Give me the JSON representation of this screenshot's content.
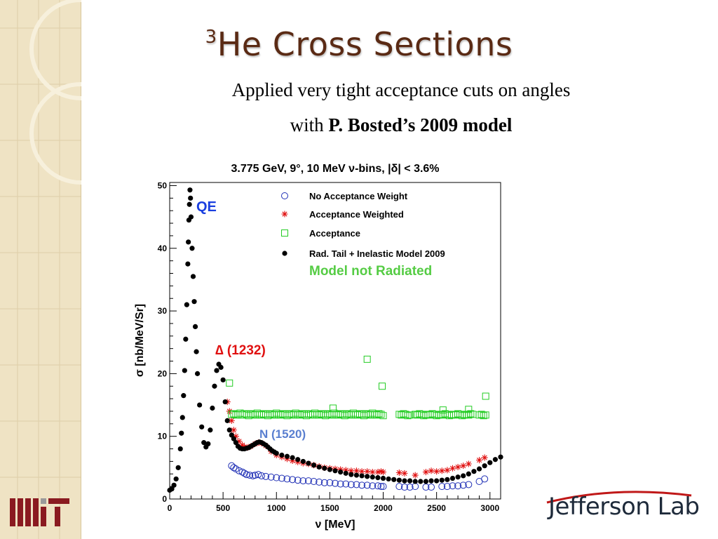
{
  "slide": {
    "title_sup": "3",
    "title": "He Cross Sections",
    "subtitle_line1": "Applied very tight acceptance cuts on angles",
    "subtitle_line2_plain": "with ",
    "subtitle_line2_bold": "P. Bosted’s 2009 model"
  },
  "logos": {
    "left": "MIT",
    "right": "Jefferson Lab"
  },
  "theme": {
    "title_color": "#5a2a14",
    "sidebar_color": "#efe3c4"
  },
  "chart_data": {
    "type": "scatter",
    "title": "3.775 GeV, 9°, 10 MeV ν-bins, |δ| < 3.6%",
    "xlabel": "ν [MeV]",
    "ylabel": "σ [nb/MeV/Sr]",
    "xlim": [
      0,
      3100
    ],
    "ylim": [
      0,
      50.5
    ],
    "xticks": [
      0,
      500,
      1000,
      1500,
      2000,
      2500,
      3000
    ],
    "yticks": [
      0,
      10,
      20,
      30,
      40,
      50
    ],
    "grid": false,
    "legend_position": "top-right",
    "series": [
      {
        "name": "No Acceptance Weight",
        "marker": "open-circle",
        "color": "#1f2fb5",
        "x": [
          580,
          600,
          620,
          650,
          680,
          700,
          720,
          750,
          780,
          800,
          830,
          860,
          900,
          950,
          1000,
          1050,
          1100,
          1150,
          1200,
          1250,
          1300,
          1350,
          1400,
          1450,
          1500,
          1550,
          1600,
          1650,
          1700,
          1750,
          1800,
          1850,
          1900,
          1950,
          1980,
          2000,
          2150,
          2200,
          2250,
          2300,
          2400,
          2450,
          2550,
          2600,
          2650,
          2700,
          2750,
          2800,
          2900,
          2950
        ],
        "y": [
          5.3,
          5.0,
          4.8,
          4.5,
          4.3,
          4.1,
          3.9,
          3.8,
          3.7,
          3.8,
          3.9,
          3.7,
          3.6,
          3.5,
          3.4,
          3.3,
          3.2,
          3.1,
          3.0,
          2.9,
          2.9,
          2.8,
          2.7,
          2.6,
          2.6,
          2.5,
          2.4,
          2.4,
          2.3,
          2.3,
          2.2,
          2.2,
          2.1,
          2.1,
          2.0,
          2.0,
          2.0,
          1.9,
          1.9,
          2.0,
          1.9,
          1.9,
          2.0,
          2.0,
          2.1,
          2.1,
          2.2,
          2.3,
          2.8,
          3.2
        ]
      },
      {
        "name": "Acceptance Weighted",
        "marker": "asterisk",
        "color": "#e01010",
        "x": [
          540,
          560,
          580,
          600,
          620,
          650,
          680,
          700,
          730,
          760,
          800,
          830,
          860,
          900,
          950,
          1000,
          1050,
          1100,
          1150,
          1200,
          1250,
          1300,
          1350,
          1400,
          1450,
          1500,
          1550,
          1600,
          1650,
          1700,
          1750,
          1800,
          1850,
          1900,
          1950,
          1980,
          2000,
          2150,
          2200,
          2300,
          2400,
          2450,
          2500,
          2550,
          2600,
          2650,
          2700,
          2750,
          2800,
          2900,
          2950
        ],
        "y": [
          15.5,
          14.0,
          12.5,
          11.0,
          10.0,
          9.2,
          8.6,
          8.3,
          8.2,
          8.4,
          8.8,
          9.0,
          8.9,
          8.5,
          7.6,
          7.0,
          6.7,
          6.4,
          6.1,
          5.9,
          5.7,
          5.6,
          5.4,
          5.2,
          5.0,
          4.9,
          4.8,
          4.7,
          4.6,
          4.5,
          4.5,
          4.4,
          4.4,
          4.3,
          4.3,
          4.4,
          4.3,
          4.2,
          4.1,
          3.8,
          4.3,
          4.5,
          4.4,
          4.5,
          4.6,
          4.9,
          5.1,
          5.3,
          5.6,
          6.2,
          6.6
        ]
      },
      {
        "name": "Acceptance",
        "marker": "open-square",
        "color": "#22cc22",
        "x": [
          580,
          600,
          620,
          640,
          660,
          680,
          700,
          720,
          740,
          760,
          780,
          800,
          820,
          840,
          860,
          880,
          900,
          920,
          940,
          960,
          980,
          1000,
          1020,
          1040,
          1060,
          1080,
          1100,
          1120,
          1140,
          1160,
          1180,
          1200,
          1220,
          1240,
          1260,
          1280,
          1300,
          1320,
          1340,
          1360,
          1380,
          1400,
          1420,
          1440,
          1460,
          1480,
          1500,
          1520,
          1540,
          1560,
          1580,
          1600,
          1620,
          1640,
          1660,
          1680,
          1700,
          1720,
          1740,
          1760,
          1780,
          1800,
          1820,
          1840,
          1860,
          1880,
          1900,
          1920,
          1940,
          1960,
          1980,
          2000,
          2150,
          2170,
          2190,
          2210,
          2230,
          2250,
          2300,
          2320,
          2340,
          2360,
          2380,
          2400,
          2420,
          2440,
          2460,
          2480,
          2500,
          2520,
          2540,
          2560,
          2580,
          2600,
          2620,
          2640,
          2660,
          2680,
          2700,
          2720,
          2740,
          2760,
          2780,
          2800,
          2820,
          2840,
          2900,
          2920,
          2940,
          2960,
          560,
          1530,
          1850,
          1990,
          2560,
          2800,
          2960
        ],
        "y": [
          13.5,
          13.6,
          13.4,
          13.5,
          13.7,
          13.4,
          13.6,
          13.5,
          13.3,
          13.6,
          13.5,
          13.4,
          13.7,
          13.5,
          13.4,
          13.6,
          13.5,
          13.3,
          13.6,
          13.5,
          13.4,
          13.7,
          13.5,
          13.4,
          13.6,
          13.5,
          13.3,
          13.6,
          13.5,
          13.4,
          13.7,
          13.5,
          13.4,
          13.6,
          13.5,
          13.3,
          13.6,
          13.5,
          13.4,
          13.7,
          13.5,
          13.4,
          13.6,
          13.5,
          13.3,
          13.6,
          13.5,
          13.4,
          13.7,
          13.5,
          13.4,
          13.6,
          13.5,
          13.3,
          13.6,
          13.5,
          13.4,
          13.7,
          13.5,
          13.4,
          13.6,
          13.5,
          13.3,
          13.6,
          13.5,
          13.4,
          13.7,
          13.5,
          13.4,
          13.6,
          13.5,
          13.3,
          13.5,
          13.4,
          13.6,
          13.5,
          13.3,
          13.4,
          13.5,
          13.4,
          13.6,
          13.5,
          13.3,
          13.4,
          13.5,
          13.4,
          13.6,
          13.5,
          13.3,
          13.4,
          13.5,
          13.4,
          13.6,
          13.5,
          13.3,
          13.4,
          13.5,
          13.4,
          13.6,
          13.5,
          13.3,
          13.4,
          13.5,
          13.4,
          13.6,
          13.5,
          13.4,
          13.5,
          13.3,
          13.4,
          18.5,
          14.5,
          22.3,
          18.0,
          14.2,
          14.3,
          16.4
        ]
      },
      {
        "name": "Rad. Tail + Inelastic Model 2009",
        "marker": "filled-dot",
        "color": "#000000",
        "x": [
          0,
          20,
          40,
          60,
          80,
          100,
          110,
          120,
          130,
          140,
          150,
          160,
          170,
          175,
          180,
          185,
          190,
          195,
          200,
          210,
          220,
          230,
          240,
          250,
          260,
          280,
          300,
          320,
          340,
          360,
          380,
          400,
          420,
          440,
          460,
          480,
          500,
          520,
          540,
          560,
          580,
          600,
          620,
          640,
          660,
          680,
          700,
          720,
          740,
          760,
          780,
          800,
          820,
          840,
          860,
          880,
          900,
          920,
          940,
          960,
          980,
          1000,
          1050,
          1100,
          1150,
          1200,
          1250,
          1300,
          1350,
          1400,
          1450,
          1500,
          1550,
          1600,
          1650,
          1700,
          1750,
          1800,
          1850,
          1900,
          1950,
          2000,
          2050,
          2100,
          2150,
          2200,
          2250,
          2300,
          2350,
          2400,
          2450,
          2500,
          2550,
          2600,
          2650,
          2700,
          2750,
          2800,
          2850,
          2900,
          2950,
          3000,
          3050,
          3100
        ],
        "y": [
          1.4,
          1.6,
          2.2,
          3.2,
          5.0,
          8.0,
          10.5,
          13.0,
          16.5,
          20.5,
          25.5,
          31.0,
          37.5,
          41.0,
          44.5,
          47.0,
          49.3,
          48.0,
          45.0,
          40.0,
          35.5,
          31.5,
          27.5,
          23.5,
          20.0,
          15.0,
          11.5,
          9.0,
          8.3,
          8.8,
          11.0,
          14.5,
          18.0,
          20.5,
          21.5,
          21.0,
          19.0,
          15.5,
          12.5,
          11.0,
          10.2,
          9.6,
          9.0,
          8.4,
          8.1,
          8.0,
          8.0,
          8.1,
          8.2,
          8.4,
          8.6,
          8.8,
          9.0,
          9.1,
          9.0,
          8.8,
          8.6,
          8.3,
          8.0,
          7.7,
          7.5,
          7.3,
          7.0,
          6.8,
          6.6,
          6.3,
          6.0,
          5.7,
          5.4,
          5.1,
          4.9,
          4.7,
          4.5,
          4.3,
          4.1,
          3.9,
          3.8,
          3.7,
          3.6,
          3.5,
          3.4,
          3.3,
          3.2,
          3.1,
          3.0,
          2.9,
          2.9,
          2.8,
          2.8,
          2.8,
          2.9,
          2.9,
          3.0,
          3.1,
          3.3,
          3.5,
          3.7,
          4.0,
          4.4,
          4.8,
          5.3,
          5.8,
          6.3,
          6.7
        ]
      }
    ],
    "annotations": [
      {
        "text": "QE",
        "color": "#1a3fe0"
      },
      {
        "text": "∆ (1232)",
        "color": "#e01010"
      },
      {
        "text": "N (1520)",
        "color": "#5a7fd0"
      },
      {
        "text": "Model not Radiated",
        "color": "#55cc44"
      }
    ]
  }
}
